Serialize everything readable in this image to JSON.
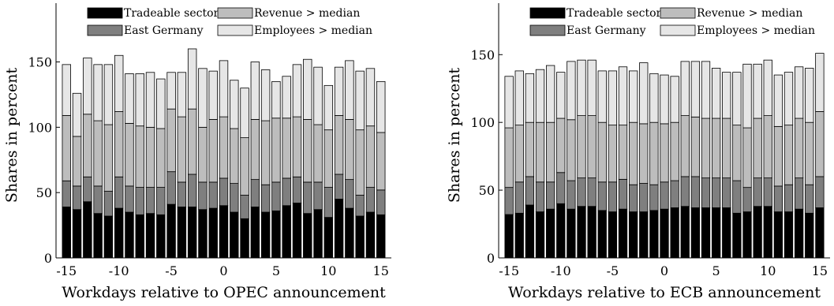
{
  "legend_colors": [
    "#000000",
    "#7f7f7f",
    "#bdbdbd",
    "#e6e6e6"
  ],
  "chart_data": [
    {
      "type": "bar",
      "stacked": true,
      "xlabel": "Workdays relative to OPEC announcement",
      "ylabel": "Shares in percent",
      "xlim": [
        -16,
        16
      ],
      "ylim": [
        0,
        195
      ],
      "xticks": [
        -15,
        -10,
        -5,
        0,
        5,
        10,
        15
      ],
      "yticks": [
        0,
        50,
        100,
        150
      ],
      "legend_position": "top",
      "x": [
        -15,
        -14,
        -13,
        -12,
        -11,
        -10,
        -9,
        -8,
        -7,
        -6,
        -5,
        -4,
        -3,
        -2,
        -1,
        0,
        1,
        2,
        3,
        4,
        5,
        6,
        7,
        8,
        9,
        10,
        11,
        12,
        13,
        14,
        15
      ],
      "series": [
        {
          "name": "Tradeable sector",
          "color": "#000000",
          "values": [
            39,
            37,
            43,
            34,
            32,
            38,
            35,
            33,
            34,
            33,
            41,
            39,
            39,
            37,
            38,
            40,
            35,
            30,
            39,
            35,
            36,
            40,
            42,
            34,
            37,
            31,
            45,
            38,
            32,
            35,
            33
          ]
        },
        {
          "name": "East Germany",
          "color": "#7f7f7f",
          "values": [
            20,
            18,
            19,
            21,
            19,
            24,
            20,
            21,
            20,
            21,
            25,
            19,
            25,
            21,
            20,
            21,
            22,
            18,
            21,
            21,
            22,
            21,
            20,
            24,
            21,
            23,
            19,
            22,
            16,
            19,
            19
          ]
        },
        {
          "name": "Revenue > median",
          "color": "#bdbdbd",
          "values": [
            50,
            38,
            48,
            50,
            51,
            50,
            48,
            47,
            46,
            45,
            48,
            50,
            50,
            42,
            48,
            47,
            42,
            44,
            46,
            49,
            49,
            46,
            46,
            48,
            44,
            44,
            45,
            46,
            50,
            47,
            44
          ]
        },
        {
          "name": "Employees > median",
          "color": "#e6e6e6",
          "values": [
            39,
            33,
            43,
            43,
            46,
            43,
            38,
            40,
            42,
            38,
            28,
            34,
            46,
            45,
            37,
            43,
            37,
            38,
            44,
            39,
            28,
            32,
            40,
            46,
            44,
            34,
            37,
            45,
            45,
            44,
            39
          ]
        }
      ]
    },
    {
      "type": "bar",
      "stacked": true,
      "xlabel": "Workdays relative to ECB announcement",
      "ylabel": "Shares in percent",
      "xlim": [
        -16,
        16
      ],
      "ylim": [
        0,
        188
      ],
      "xticks": [
        -15,
        -10,
        -5,
        0,
        5,
        10,
        15
      ],
      "yticks": [
        0,
        50,
        100,
        150
      ],
      "legend_position": "top",
      "x": [
        -15,
        -14,
        -13,
        -12,
        -11,
        -10,
        -9,
        -8,
        -7,
        -6,
        -5,
        -4,
        -3,
        -2,
        -1,
        0,
        1,
        2,
        3,
        4,
        5,
        6,
        7,
        8,
        9,
        10,
        11,
        12,
        13,
        14,
        15
      ],
      "series": [
        {
          "name": "Tradeable sector",
          "color": "#000000",
          "values": [
            32,
            33,
            39,
            34,
            36,
            40,
            36,
            38,
            38,
            35,
            34,
            36,
            34,
            34,
            35,
            36,
            37,
            38,
            37,
            37,
            37,
            37,
            33,
            34,
            38,
            38,
            34,
            34,
            36,
            33,
            37
          ]
        },
        {
          "name": "East Germany",
          "color": "#7f7f7f",
          "values": [
            20,
            23,
            21,
            22,
            20,
            23,
            21,
            21,
            21,
            21,
            22,
            22,
            20,
            21,
            19,
            20,
            20,
            22,
            23,
            22,
            22,
            22,
            24,
            18,
            21,
            21,
            19,
            20,
            23,
            21,
            23
          ]
        },
        {
          "name": "Revenue > median",
          "color": "#bdbdbd",
          "values": [
            44,
            42,
            40,
            44,
            44,
            40,
            45,
            46,
            46,
            44,
            42,
            40,
            46,
            44,
            46,
            43,
            43,
            45,
            44,
            44,
            44,
            44,
            41,
            44,
            44,
            46,
            44,
            44,
            44,
            46,
            48
          ]
        },
        {
          "name": "Employees > median",
          "color": "#e6e6e6",
          "values": [
            38,
            40,
            36,
            39,
            42,
            34,
            43,
            41,
            41,
            38,
            40,
            43,
            38,
            45,
            36,
            36,
            34,
            40,
            41,
            42,
            37,
            34,
            39,
            47,
            40,
            41,
            38,
            39,
            38,
            40,
            43
          ]
        }
      ]
    }
  ]
}
